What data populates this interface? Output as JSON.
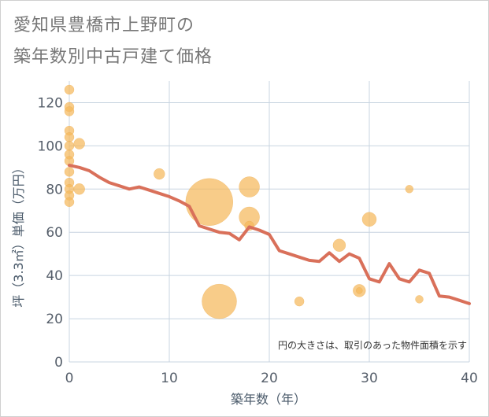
{
  "header": {
    "title_line1": "愛知県豊橋市上野町の",
    "title_line2": "築年数別中古戸建て価格"
  },
  "chart_data": {
    "type": "scatter",
    "title": "愛知県豊橋市上野町の築年数別中古戸建て価格",
    "xlabel": "築年数（年）",
    "ylabel": "坪（3.3㎡）単価（万円）",
    "xlim": [
      0,
      40
    ],
    "ylim": [
      0,
      130
    ],
    "xticks": [
      0,
      10,
      20,
      30,
      40
    ],
    "yticks": [
      0,
      20,
      40,
      60,
      80,
      100,
      120
    ],
    "grid": true,
    "note": "円の大きさは、取引のあった物件面積を示す",
    "colors": {
      "bubble": "#f5b95c",
      "line": "#d9705a",
      "grid": "#c8d4e0"
    },
    "scatter_points": [
      {
        "x": 0,
        "y": 126,
        "size": 6
      },
      {
        "x": 0,
        "y": 118,
        "size": 6
      },
      {
        "x": 0,
        "y": 116,
        "size": 6
      },
      {
        "x": 0,
        "y": 107,
        "size": 6
      },
      {
        "x": 0,
        "y": 104,
        "size": 6
      },
      {
        "x": 0,
        "y": 100,
        "size": 6
      },
      {
        "x": 0,
        "y": 96,
        "size": 6
      },
      {
        "x": 0,
        "y": 93,
        "size": 6
      },
      {
        "x": 0,
        "y": 88,
        "size": 6
      },
      {
        "x": 0,
        "y": 83,
        "size": 6
      },
      {
        "x": 0,
        "y": 80,
        "size": 6
      },
      {
        "x": 0,
        "y": 77,
        "size": 6
      },
      {
        "x": 0,
        "y": 74,
        "size": 6
      },
      {
        "x": 1,
        "y": 101,
        "size": 7
      },
      {
        "x": 1,
        "y": 80,
        "size": 7
      },
      {
        "x": 9,
        "y": 87,
        "size": 7
      },
      {
        "x": 14,
        "y": 74,
        "size": 30
      },
      {
        "x": 15,
        "y": 28,
        "size": 22
      },
      {
        "x": 18,
        "y": 81,
        "size": 13
      },
      {
        "x": 18,
        "y": 67,
        "size": 13
      },
      {
        "x": 18,
        "y": 63,
        "size": 6
      },
      {
        "x": 23,
        "y": 28,
        "size": 6
      },
      {
        "x": 27,
        "y": 54,
        "size": 8
      },
      {
        "x": 29,
        "y": 33,
        "size": 8
      },
      {
        "x": 29,
        "y": 33,
        "size": 4
      },
      {
        "x": 30,
        "y": 66,
        "size": 9
      },
      {
        "x": 34,
        "y": 80,
        "size": 5
      },
      {
        "x": 35,
        "y": 29,
        "size": 5
      }
    ],
    "trend_line": {
      "x": [
        0,
        1,
        2,
        3,
        4,
        5,
        6,
        7,
        8,
        9,
        10,
        11,
        12,
        13,
        14,
        15,
        16,
        17,
        18,
        19,
        20,
        21,
        22,
        23,
        24,
        25,
        26,
        27,
        28,
        29,
        30,
        31,
        32,
        33,
        34,
        35,
        36,
        37,
        38,
        39,
        40
      ],
      "y": [
        91,
        90,
        88.5,
        85.5,
        83,
        81.5,
        80,
        81,
        79.5,
        78,
        76.5,
        74.5,
        72,
        63,
        61.5,
        60,
        59.5,
        56.5,
        62.5,
        61,
        59,
        51.5,
        50,
        48.5,
        47,
        46.5,
        50.5,
        46.5,
        50,
        48,
        38.5,
        37,
        45.5,
        38.5,
        37,
        42.5,
        41,
        30.5,
        30,
        28.5,
        27
      ]
    }
  }
}
